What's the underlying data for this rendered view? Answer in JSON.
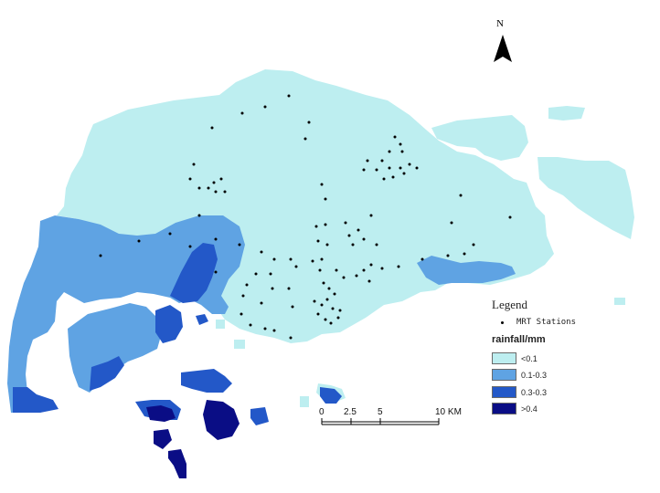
{
  "north_arrow": {
    "label": "N",
    "icon": "north-arrow-icon"
  },
  "legend": {
    "title": "Legend",
    "stations_label": "MRT Stations",
    "rainfall_title": "rainfall/mm",
    "classes": [
      {
        "label": "<0.1",
        "color": "#bdeef0"
      },
      {
        "label": "0.1-0.3",
        "color": "#5fa3e3"
      },
      {
        "label": "0.3-0.3",
        "color": "#2358c8"
      },
      {
        "label": ">0.4",
        "color": "#0a0d85"
      }
    ]
  },
  "scale_bar": {
    "ticks": [
      "0",
      "2.5",
      "5",
      "10 KM"
    ]
  }
}
